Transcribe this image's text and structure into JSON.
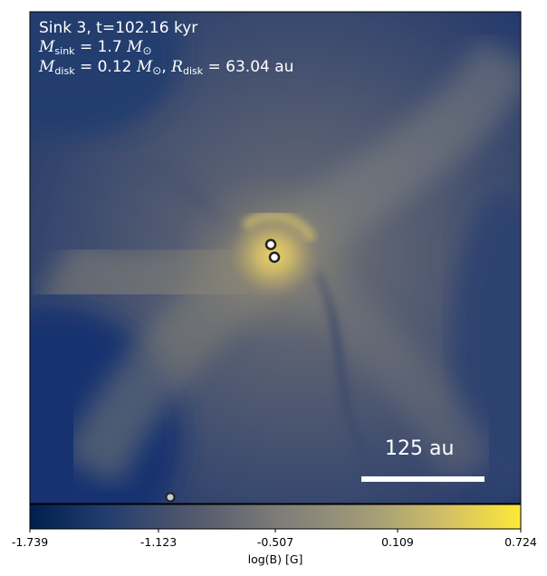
{
  "annotation": {
    "line1": "Sink 3, t=102.16 kyr",
    "m_sink_symbol": "M",
    "m_sink_sub": "sink",
    "m_sink_value": " = 1.7 ",
    "m_disk_symbol": "M",
    "m_disk_sub": "disk",
    "m_disk_value": " = 0.12 ",
    "r_disk_symbol": "R",
    "r_disk_sub": "disk",
    "r_disk_value": " = 63.04 au",
    "sun_unit": "M",
    "sun_sub": "⊙",
    "separator": ", "
  },
  "scale_bar": {
    "label": "125 au"
  },
  "colorbar": {
    "label": "log(B) [G]",
    "ticks": [
      "-1.739",
      "-1.123",
      "-0.507",
      "0.109",
      "0.724"
    ],
    "colormap": [
      "#00204c",
      "#575c6d",
      "#7c7b78",
      "#a49d78",
      "#fee838"
    ]
  },
  "sinks": [
    {
      "name": "sink-main",
      "style": "white"
    },
    {
      "name": "sink-companion",
      "style": "white"
    },
    {
      "name": "sink-distant",
      "style": "grey"
    }
  ]
}
